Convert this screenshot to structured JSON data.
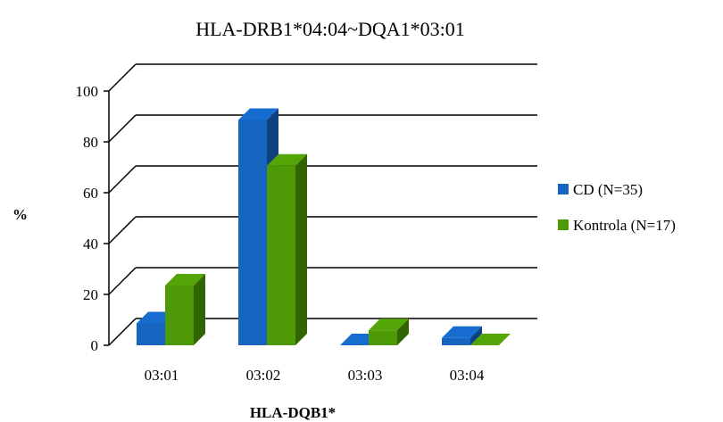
{
  "chart_data": {
    "type": "bar",
    "style": "3d-clustered-column",
    "title": "HLA-DRB1*04:04~DQA1*03:01",
    "xlabel": "HLA-DQB1*",
    "ylabel": "%",
    "categories": [
      "03:01",
      "03:02",
      "03:03",
      "03:04"
    ],
    "series": [
      {
        "name": "CD (N=35)",
        "color": "#1565c0",
        "values": [
          8.6,
          88.6,
          0,
          2.9
        ]
      },
      {
        "name": "Kontrola (N=17)",
        "color": "#4e9a06",
        "values": [
          23.5,
          70.6,
          5.9,
          0
        ]
      }
    ],
    "ylim": [
      0,
      100
    ],
    "yticks": [
      0,
      20,
      40,
      60,
      80,
      100
    ],
    "grid": true,
    "legend_position": "right"
  }
}
